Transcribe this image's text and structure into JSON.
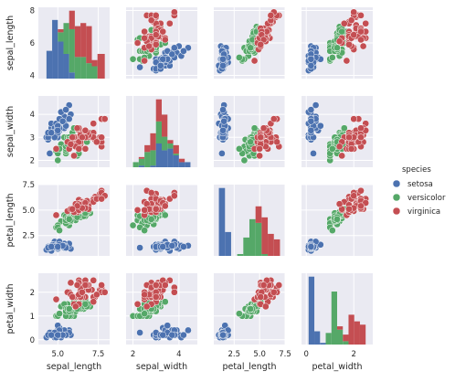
{
  "colors": {
    "setosa": "#4c72b0",
    "versicolor": "#55a868",
    "virginica": "#c44e52",
    "panel_bg": "#eaeaf2",
    "grid": "#ffffff"
  },
  "legend": {
    "title": "species",
    "items": [
      "setosa",
      "versicolor",
      "virginica"
    ],
    "placement": "right"
  },
  "chart_data": {
    "type": "scatter",
    "variables": [
      "sepal_length",
      "sepal_width",
      "petal_length",
      "petal_width"
    ],
    "grid": true,
    "axes": {
      "sepal_length": {
        "lim": [
          3.8,
          8.2
        ],
        "ticks": [
          4,
          6,
          8
        ],
        "x_ticks": [
          5.0,
          7.5
        ],
        "x_tick_labels": [
          "5.0",
          "7.5"
        ]
      },
      "sepal_width": {
        "lim": [
          1.7,
          4.8
        ],
        "ticks": [
          2,
          3,
          4
        ],
        "x_ticks": [
          2,
          4
        ],
        "x_tick_labels": [
          "2",
          "4"
        ]
      },
      "petal_length": {
        "lim": [
          0.5,
          7.5
        ],
        "ticks": [
          2.5,
          5.0,
          7.5
        ],
        "tick_labels": [
          "2.5",
          "5.0",
          "7.5"
        ],
        "x_ticks": [
          2.5,
          5.0,
          7.5
        ],
        "x_tick_labels": [
          "2.5",
          "5.0",
          "7.5"
        ]
      },
      "petal_width": {
        "lim": [
          -0.2,
          2.8
        ],
        "ticks": [
          0,
          1,
          2
        ],
        "x_ticks": [
          0,
          2
        ],
        "x_tick_labels": [
          "0",
          "2"
        ]
      }
    },
    "series": [
      {
        "name": "setosa",
        "points": [
          [
            5.1,
            3.5,
            1.4,
            0.2
          ],
          [
            4.9,
            3.0,
            1.4,
            0.2
          ],
          [
            4.7,
            3.2,
            1.3,
            0.2
          ],
          [
            4.6,
            3.1,
            1.5,
            0.2
          ],
          [
            5.0,
            3.6,
            1.4,
            0.2
          ],
          [
            5.4,
            3.9,
            1.7,
            0.4
          ],
          [
            4.6,
            3.4,
            1.4,
            0.3
          ],
          [
            5.0,
            3.4,
            1.5,
            0.2
          ],
          [
            4.4,
            2.9,
            1.4,
            0.2
          ],
          [
            4.9,
            3.1,
            1.5,
            0.1
          ],
          [
            5.4,
            3.7,
            1.5,
            0.2
          ],
          [
            4.8,
            3.4,
            1.6,
            0.2
          ],
          [
            4.8,
            3.0,
            1.4,
            0.1
          ],
          [
            4.3,
            3.0,
            1.1,
            0.1
          ],
          [
            5.8,
            4.0,
            1.2,
            0.2
          ],
          [
            5.7,
            4.4,
            1.5,
            0.4
          ],
          [
            5.4,
            3.9,
            1.3,
            0.4
          ],
          [
            5.1,
            3.5,
            1.4,
            0.3
          ],
          [
            5.7,
            3.8,
            1.7,
            0.3
          ],
          [
            5.1,
            3.8,
            1.5,
            0.3
          ],
          [
            5.4,
            3.4,
            1.7,
            0.2
          ],
          [
            5.1,
            3.7,
            1.5,
            0.4
          ],
          [
            4.6,
            3.6,
            1.0,
            0.2
          ],
          [
            5.1,
            3.3,
            1.7,
            0.5
          ],
          [
            4.8,
            3.4,
            1.9,
            0.2
          ],
          [
            5.0,
            3.0,
            1.6,
            0.2
          ],
          [
            5.0,
            3.4,
            1.6,
            0.4
          ],
          [
            5.2,
            3.5,
            1.5,
            0.2
          ],
          [
            5.2,
            3.4,
            1.4,
            0.2
          ],
          [
            4.7,
            3.2,
            1.6,
            0.2
          ],
          [
            4.8,
            3.1,
            1.6,
            0.2
          ],
          [
            5.4,
            3.4,
            1.5,
            0.4
          ],
          [
            5.2,
            4.1,
            1.5,
            0.1
          ],
          [
            5.5,
            4.2,
            1.4,
            0.2
          ],
          [
            4.9,
            3.1,
            1.5,
            0.2
          ],
          [
            5.0,
            3.2,
            1.2,
            0.2
          ],
          [
            5.5,
            3.5,
            1.3,
            0.2
          ],
          [
            4.9,
            3.6,
            1.4,
            0.1
          ],
          [
            4.4,
            3.0,
            1.3,
            0.2
          ],
          [
            5.1,
            3.4,
            1.5,
            0.2
          ],
          [
            5.0,
            3.5,
            1.3,
            0.3
          ],
          [
            4.5,
            2.3,
            1.3,
            0.3
          ],
          [
            4.4,
            3.2,
            1.3,
            0.2
          ],
          [
            5.0,
            3.5,
            1.6,
            0.6
          ],
          [
            5.1,
            3.8,
            1.9,
            0.4
          ],
          [
            4.8,
            3.0,
            1.4,
            0.3
          ],
          [
            5.1,
            3.8,
            1.6,
            0.2
          ],
          [
            4.6,
            3.2,
            1.4,
            0.2
          ],
          [
            5.3,
            3.7,
            1.5,
            0.2
          ],
          [
            5.0,
            3.3,
            1.4,
            0.2
          ]
        ]
      },
      {
        "name": "versicolor",
        "points": [
          [
            7.0,
            3.2,
            4.7,
            1.4
          ],
          [
            6.4,
            3.2,
            4.5,
            1.5
          ],
          [
            6.9,
            3.1,
            4.9,
            1.5
          ],
          [
            5.5,
            2.3,
            4.0,
            1.3
          ],
          [
            6.5,
            2.8,
            4.6,
            1.5
          ],
          [
            5.7,
            2.8,
            4.5,
            1.3
          ],
          [
            6.3,
            3.3,
            4.7,
            1.6
          ],
          [
            4.9,
            2.4,
            3.3,
            1.0
          ],
          [
            6.6,
            2.9,
            4.6,
            1.3
          ],
          [
            5.2,
            2.7,
            3.9,
            1.4
          ],
          [
            5.0,
            2.0,
            3.5,
            1.0
          ],
          [
            5.9,
            3.0,
            4.2,
            1.5
          ],
          [
            6.0,
            2.2,
            4.0,
            1.0
          ],
          [
            6.1,
            2.9,
            4.7,
            1.4
          ],
          [
            5.6,
            2.9,
            3.6,
            1.3
          ],
          [
            6.7,
            3.1,
            4.4,
            1.4
          ],
          [
            5.6,
            3.0,
            4.5,
            1.5
          ],
          [
            5.8,
            2.7,
            4.1,
            1.0
          ],
          [
            6.2,
            2.2,
            4.5,
            1.5
          ],
          [
            5.6,
            2.5,
            3.9,
            1.1
          ],
          [
            5.9,
            3.2,
            4.8,
            1.8
          ],
          [
            6.1,
            2.8,
            4.0,
            1.3
          ],
          [
            6.3,
            2.5,
            4.9,
            1.5
          ],
          [
            6.1,
            2.8,
            4.7,
            1.2
          ],
          [
            6.4,
            2.9,
            4.3,
            1.3
          ],
          [
            6.6,
            3.0,
            4.4,
            1.4
          ],
          [
            6.8,
            2.8,
            4.8,
            1.4
          ],
          [
            6.7,
            3.0,
            5.0,
            1.7
          ],
          [
            6.0,
            2.9,
            4.5,
            1.5
          ],
          [
            5.7,
            2.6,
            3.5,
            1.0
          ],
          [
            5.5,
            2.4,
            3.8,
            1.1
          ],
          [
            5.5,
            2.4,
            3.7,
            1.0
          ],
          [
            5.8,
            2.7,
            3.9,
            1.2
          ],
          [
            6.0,
            2.7,
            5.1,
            1.6
          ],
          [
            5.4,
            3.0,
            4.5,
            1.5
          ],
          [
            6.0,
            3.4,
            4.5,
            1.6
          ],
          [
            6.7,
            3.1,
            4.7,
            1.5
          ],
          [
            6.3,
            2.3,
            4.4,
            1.3
          ],
          [
            5.6,
            3.0,
            4.1,
            1.3
          ],
          [
            5.5,
            2.5,
            4.0,
            1.3
          ],
          [
            5.5,
            2.6,
            4.4,
            1.2
          ],
          [
            6.1,
            3.0,
            4.6,
            1.4
          ],
          [
            5.8,
            2.6,
            4.0,
            1.2
          ],
          [
            5.0,
            2.3,
            3.3,
            1.0
          ],
          [
            5.6,
            2.7,
            4.2,
            1.3
          ],
          [
            5.7,
            3.0,
            4.2,
            1.2
          ],
          [
            5.7,
            2.9,
            4.2,
            1.3
          ],
          [
            6.2,
            2.9,
            4.3,
            1.3
          ],
          [
            5.1,
            2.5,
            3.0,
            1.1
          ],
          [
            5.7,
            2.8,
            4.1,
            1.3
          ]
        ]
      },
      {
        "name": "virginica",
        "points": [
          [
            6.3,
            3.3,
            6.0,
            2.5
          ],
          [
            5.8,
            2.7,
            5.1,
            1.9
          ],
          [
            7.1,
            3.0,
            5.9,
            2.1
          ],
          [
            6.3,
            2.9,
            5.6,
            1.8
          ],
          [
            6.5,
            3.0,
            5.8,
            2.2
          ],
          [
            7.6,
            3.0,
            6.6,
            2.1
          ],
          [
            4.9,
            2.5,
            4.5,
            1.7
          ],
          [
            7.3,
            2.9,
            6.3,
            1.8
          ],
          [
            6.7,
            2.5,
            5.8,
            1.8
          ],
          [
            7.2,
            3.6,
            6.1,
            2.5
          ],
          [
            6.5,
            3.2,
            5.1,
            2.0
          ],
          [
            6.4,
            2.7,
            5.3,
            1.9
          ],
          [
            6.8,
            3.0,
            5.5,
            2.1
          ],
          [
            5.7,
            2.5,
            5.0,
            2.0
          ],
          [
            5.8,
            2.8,
            5.1,
            2.4
          ],
          [
            6.4,
            3.2,
            5.3,
            2.3
          ],
          [
            6.5,
            3.0,
            5.5,
            1.8
          ],
          [
            7.7,
            3.8,
            6.7,
            2.2
          ],
          [
            7.7,
            2.6,
            6.9,
            2.3
          ],
          [
            6.0,
            2.2,
            5.0,
            1.5
          ],
          [
            6.9,
            3.2,
            5.7,
            2.3
          ],
          [
            5.6,
            2.8,
            4.9,
            2.0
          ],
          [
            7.7,
            2.8,
            6.7,
            2.0
          ],
          [
            6.3,
            2.7,
            4.9,
            1.8
          ],
          [
            6.7,
            3.3,
            5.7,
            2.1
          ],
          [
            7.2,
            3.2,
            6.0,
            1.8
          ],
          [
            6.2,
            2.8,
            4.8,
            1.8
          ],
          [
            6.1,
            3.0,
            4.9,
            1.8
          ],
          [
            6.4,
            2.8,
            5.6,
            2.1
          ],
          [
            7.2,
            3.0,
            5.8,
            1.6
          ],
          [
            7.4,
            2.8,
            6.1,
            1.9
          ],
          [
            7.9,
            3.8,
            6.4,
            2.0
          ],
          [
            6.4,
            2.8,
            5.6,
            2.2
          ],
          [
            6.3,
            2.8,
            5.1,
            1.5
          ],
          [
            6.1,
            2.6,
            5.6,
            1.4
          ],
          [
            7.7,
            3.0,
            6.1,
            2.3
          ],
          [
            6.3,
            3.4,
            5.6,
            2.4
          ],
          [
            6.4,
            3.1,
            5.5,
            1.8
          ],
          [
            6.0,
            3.0,
            4.8,
            1.8
          ],
          [
            6.9,
            3.1,
            5.4,
            2.1
          ],
          [
            6.7,
            3.1,
            5.6,
            2.4
          ],
          [
            6.9,
            3.1,
            5.1,
            2.3
          ],
          [
            5.8,
            2.7,
            5.1,
            1.9
          ],
          [
            6.8,
            3.2,
            5.9,
            2.3
          ],
          [
            6.7,
            3.3,
            5.7,
            2.5
          ],
          [
            6.7,
            3.0,
            5.2,
            2.3
          ],
          [
            6.3,
            2.5,
            5.0,
            1.9
          ],
          [
            6.5,
            3.0,
            5.2,
            2.0
          ],
          [
            6.2,
            3.4,
            5.4,
            2.3
          ],
          [
            5.9,
            3.0,
            5.1,
            1.8
          ]
        ]
      }
    ],
    "diagonal": {
      "type": "histogram",
      "stacked": true,
      "bins": {
        "sepal_length": {
          "edges": [
            4.3,
            4.65,
            5.0,
            5.35,
            5.7,
            6.05,
            6.4,
            6.75,
            7.1,
            7.45,
            7.9
          ],
          "counts": {
            "setosa": [
              9,
              19,
              12,
              8,
              2,
              0,
              0,
              0,
              0,
              0
            ],
            "versicolor": [
              0,
              0,
              3,
              10,
              14,
              7,
              7,
              5,
              4,
              0
            ],
            "virginica": [
              0,
              0,
              1,
              0,
              6,
              10,
              11,
              12,
              2,
              8
            ]
          }
        },
        "sepal_width": {
          "edges": [
            2.0,
            2.25,
            2.5,
            2.75,
            3.0,
            3.25,
            3.5,
            3.75,
            4.0,
            4.25,
            4.5
          ],
          "counts": {
            "setosa": [
              0,
              1,
              0,
              1,
              14,
              10,
              11,
              7,
              3,
              3
            ],
            "versicolor": [
              3,
              4,
              9,
              9,
              13,
              8,
              3,
              1,
              0,
              0
            ],
            "virginica": [
              0,
              1,
              4,
              10,
              13,
              13,
              2,
              5,
              2,
              0
            ]
          }
        },
        "petal_length": {
          "edges": [
            1.0,
            1.6,
            2.2,
            2.8,
            3.4,
            4.0,
            4.6,
            5.2,
            5.8,
            6.4,
            7.0
          ],
          "counts": {
            "setosa": [
              37,
              13,
              0,
              0,
              0,
              0,
              0,
              0,
              0,
              0
            ],
            "versicolor": [
              0,
              0,
              0,
              1,
              10,
              20,
              18,
              1,
              0,
              0
            ],
            "virginica": [
              0,
              0,
              0,
              0,
              0,
              0,
              9,
              20,
              12,
              9
            ]
          }
        },
        "petal_width": {
          "edges": [
            0.1,
            0.34,
            0.58,
            0.82,
            1.06,
            1.3,
            1.54,
            1.78,
            2.02,
            2.26,
            2.5
          ],
          "counts": {
            "setosa": [
              41,
              8,
              1,
              0,
              0,
              0,
              0,
              0,
              0,
              0
            ],
            "versicolor": [
              0,
              0,
              0,
              7,
              32,
              9,
              2,
              0,
              0,
              0
            ],
            "virginica": [
              0,
              0,
              0,
              0,
              0,
              2,
              4,
              18,
              14,
              12
            ]
          }
        }
      }
    }
  }
}
